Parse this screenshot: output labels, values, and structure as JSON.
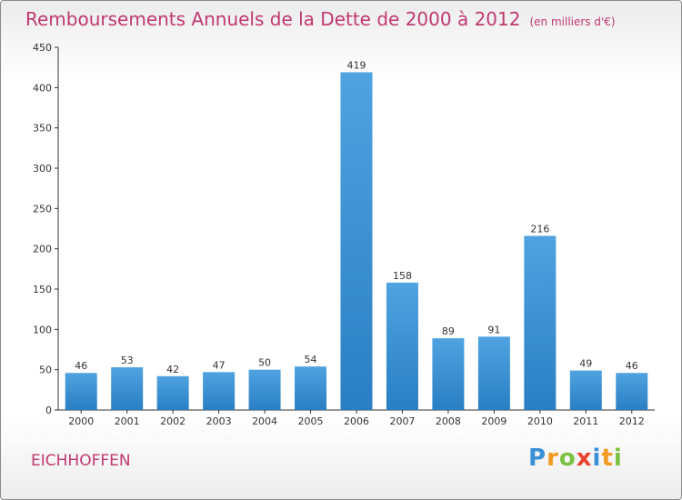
{
  "chart_data": {
    "type": "bar",
    "title": "Remboursements Annuels de la Dette de 2000 à 2012",
    "subtitle": "(en milliers d'€)",
    "categories": [
      "2000",
      "2001",
      "2002",
      "2003",
      "2004",
      "2005",
      "2006",
      "2007",
      "2008",
      "2009",
      "2010",
      "2011",
      "2012"
    ],
    "values": [
      46,
      53,
      42,
      47,
      50,
      54,
      419,
      158,
      89,
      91,
      216,
      49,
      46
    ],
    "data_labels": [
      "46",
      "53",
      "42",
      "47",
      "50",
      "54",
      "419",
      "158",
      "89",
      "91",
      "216",
      "49",
      "46"
    ],
    "ylim": [
      0,
      450
    ],
    "yticks": [
      0,
      50,
      100,
      150,
      200,
      250,
      300,
      350,
      400,
      450
    ],
    "grid": false,
    "bar_color": "#4fa3e0",
    "bar_color_dark": "#2a7fc4"
  },
  "commune": "EICHHOFFEN",
  "logo": {
    "text": "Proxiti",
    "letters": [
      {
        "ch": "P",
        "color": "#3b8fd6"
      },
      {
        "ch": "r",
        "color": "#f29a1f"
      },
      {
        "ch": "o",
        "color": "#7cc242"
      },
      {
        "ch": "x",
        "color": "#e8422f"
      },
      {
        "ch": "i",
        "color": "#3b8fd6"
      },
      {
        "ch": "t",
        "color": "#f29a1f"
      },
      {
        "ch": "i",
        "color": "#7cc242"
      }
    ]
  },
  "colors": {
    "title": "#c03871",
    "axis": "#333333"
  }
}
